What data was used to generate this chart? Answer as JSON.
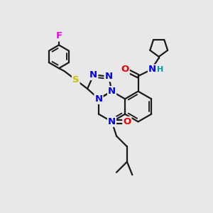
{
  "bg": "#e8e8e8",
  "bond_color": "#1a1a1a",
  "bw": 1.6,
  "atom_colors": {
    "N": "#0000ee",
    "O": "#ee0000",
    "S": "#ccbb00",
    "F": "#ee00ee",
    "H": "#009999",
    "C": "#1a1a1a"
  },
  "font_size": 9.5
}
